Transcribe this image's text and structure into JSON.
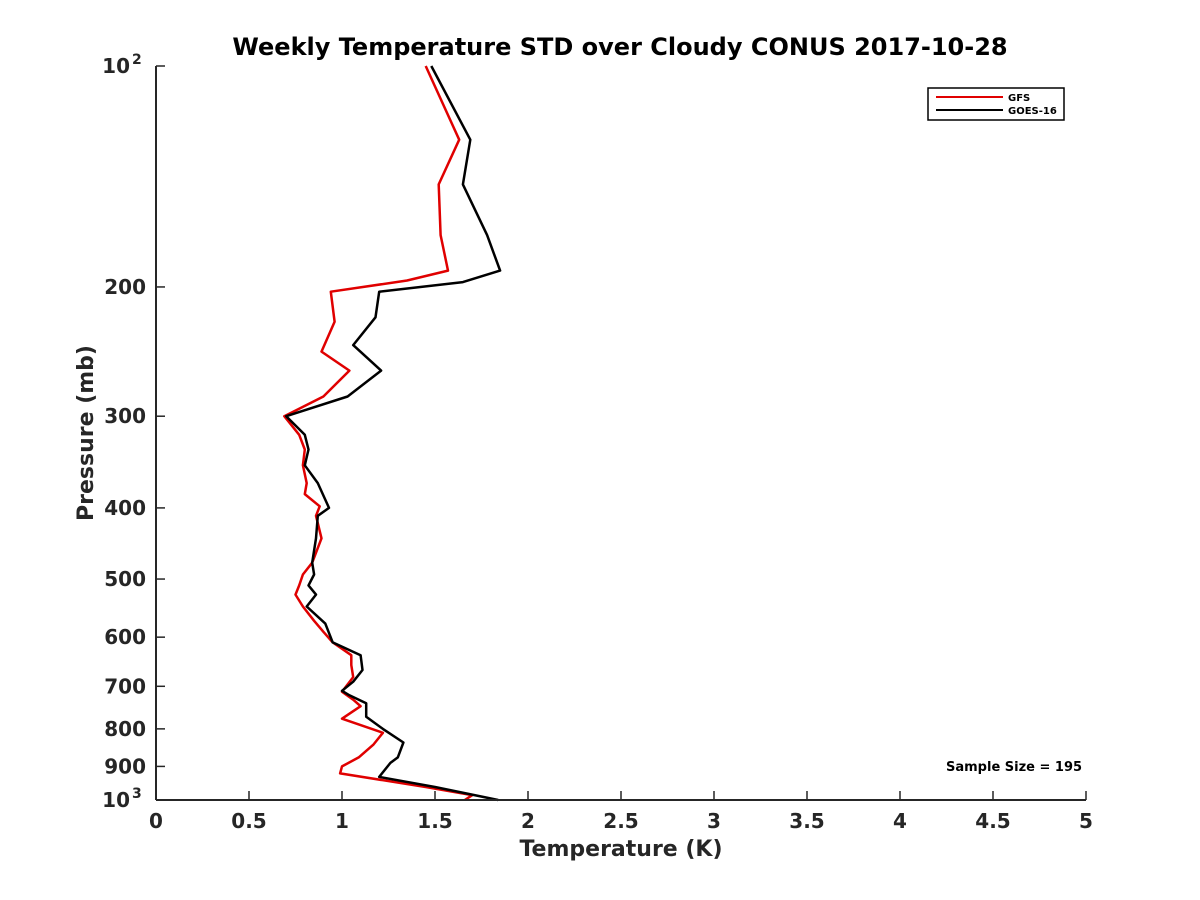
{
  "chart_data": {
    "type": "line",
    "title": "Weekly Temperature STD over Cloudy CONUS 2017-10-28",
    "xlabel": "Temperature (K)",
    "ylabel": "Pressure (mb)",
    "xlim": [
      0,
      5
    ],
    "ylim": [
      100,
      1000
    ],
    "y_scale": "log",
    "y_reversed": true,
    "grid": false,
    "legend_position": "top-right",
    "x_ticks": [
      "0",
      "0.5",
      "1",
      "1.5",
      "2",
      "2.5",
      "3",
      "3.5",
      "4",
      "4.5",
      "5"
    ],
    "y_ticks": [
      {
        "value": 100,
        "base": "10",
        "exp": "2"
      },
      {
        "value": 200,
        "label": "200"
      },
      {
        "value": 300,
        "label": "300"
      },
      {
        "value": 400,
        "label": "400"
      },
      {
        "value": 500,
        "label": "500"
      },
      {
        "value": 600,
        "label": "600"
      },
      {
        "value": 700,
        "label": "700"
      },
      {
        "value": 800,
        "label": "800"
      },
      {
        "value": 900,
        "label": "900"
      },
      {
        "value": 1000,
        "base": "10",
        "exp": "3"
      }
    ],
    "series": [
      {
        "name": "GFS",
        "color": "#e00000",
        "points": [
          [
            1.45,
            100
          ],
          [
            1.63,
            126
          ],
          [
            1.52,
            145
          ],
          [
            1.53,
            170
          ],
          [
            1.57,
            190
          ],
          [
            1.35,
            196
          ],
          [
            0.94,
            203
          ],
          [
            0.96,
            223
          ],
          [
            0.89,
            245
          ],
          [
            1.04,
            260
          ],
          [
            0.9,
            282
          ],
          [
            0.69,
            300
          ],
          [
            0.77,
            318
          ],
          [
            0.8,
            333
          ],
          [
            0.79,
            350
          ],
          [
            0.81,
            370
          ],
          [
            0.8,
            383
          ],
          [
            0.88,
            398
          ],
          [
            0.86,
            410
          ],
          [
            0.89,
            440
          ],
          [
            0.84,
            475
          ],
          [
            0.79,
            493
          ],
          [
            0.77,
            510
          ],
          [
            0.75,
            525
          ],
          [
            0.79,
            545
          ],
          [
            0.85,
            570
          ],
          [
            0.9,
            590
          ],
          [
            0.95,
            610
          ],
          [
            1.05,
            635
          ],
          [
            1.05,
            655
          ],
          [
            1.06,
            680
          ],
          [
            1.0,
            712
          ],
          [
            1.06,
            730
          ],
          [
            1.1,
            745
          ],
          [
            1.0,
            775
          ],
          [
            1.22,
            810
          ],
          [
            1.17,
            840
          ],
          [
            1.09,
            875
          ],
          [
            1.0,
            900
          ],
          [
            0.99,
            920
          ],
          [
            1.45,
            960
          ],
          [
            1.7,
            985
          ],
          [
            1.66,
            1000
          ]
        ]
      },
      {
        "name": "GOES-16",
        "color": "#000000",
        "points": [
          [
            1.48,
            100
          ],
          [
            1.69,
            126
          ],
          [
            1.65,
            145
          ],
          [
            1.78,
            170
          ],
          [
            1.85,
            190
          ],
          [
            1.65,
            197
          ],
          [
            1.2,
            203
          ],
          [
            1.18,
            220
          ],
          [
            1.06,
            240
          ],
          [
            1.21,
            260
          ],
          [
            1.03,
            282
          ],
          [
            0.7,
            300
          ],
          [
            0.8,
            318
          ],
          [
            0.82,
            333
          ],
          [
            0.8,
            350
          ],
          [
            0.87,
            370
          ],
          [
            0.93,
            400
          ],
          [
            0.87,
            410
          ],
          [
            0.86,
            440
          ],
          [
            0.84,
            475
          ],
          [
            0.85,
            493
          ],
          [
            0.82,
            510
          ],
          [
            0.86,
            525
          ],
          [
            0.81,
            545
          ],
          [
            0.91,
            575
          ],
          [
            0.95,
            610
          ],
          [
            1.1,
            635
          ],
          [
            1.11,
            665
          ],
          [
            1.06,
            690
          ],
          [
            1.0,
            710
          ],
          [
            1.04,
            720
          ],
          [
            1.13,
            738
          ],
          [
            1.13,
            770
          ],
          [
            1.22,
            800
          ],
          [
            1.33,
            835
          ],
          [
            1.3,
            875
          ],
          [
            1.26,
            890
          ],
          [
            1.2,
            930
          ],
          [
            1.5,
            960
          ],
          [
            1.84,
            1000
          ]
        ]
      }
    ],
    "annotation": "Sample Size = 195"
  }
}
